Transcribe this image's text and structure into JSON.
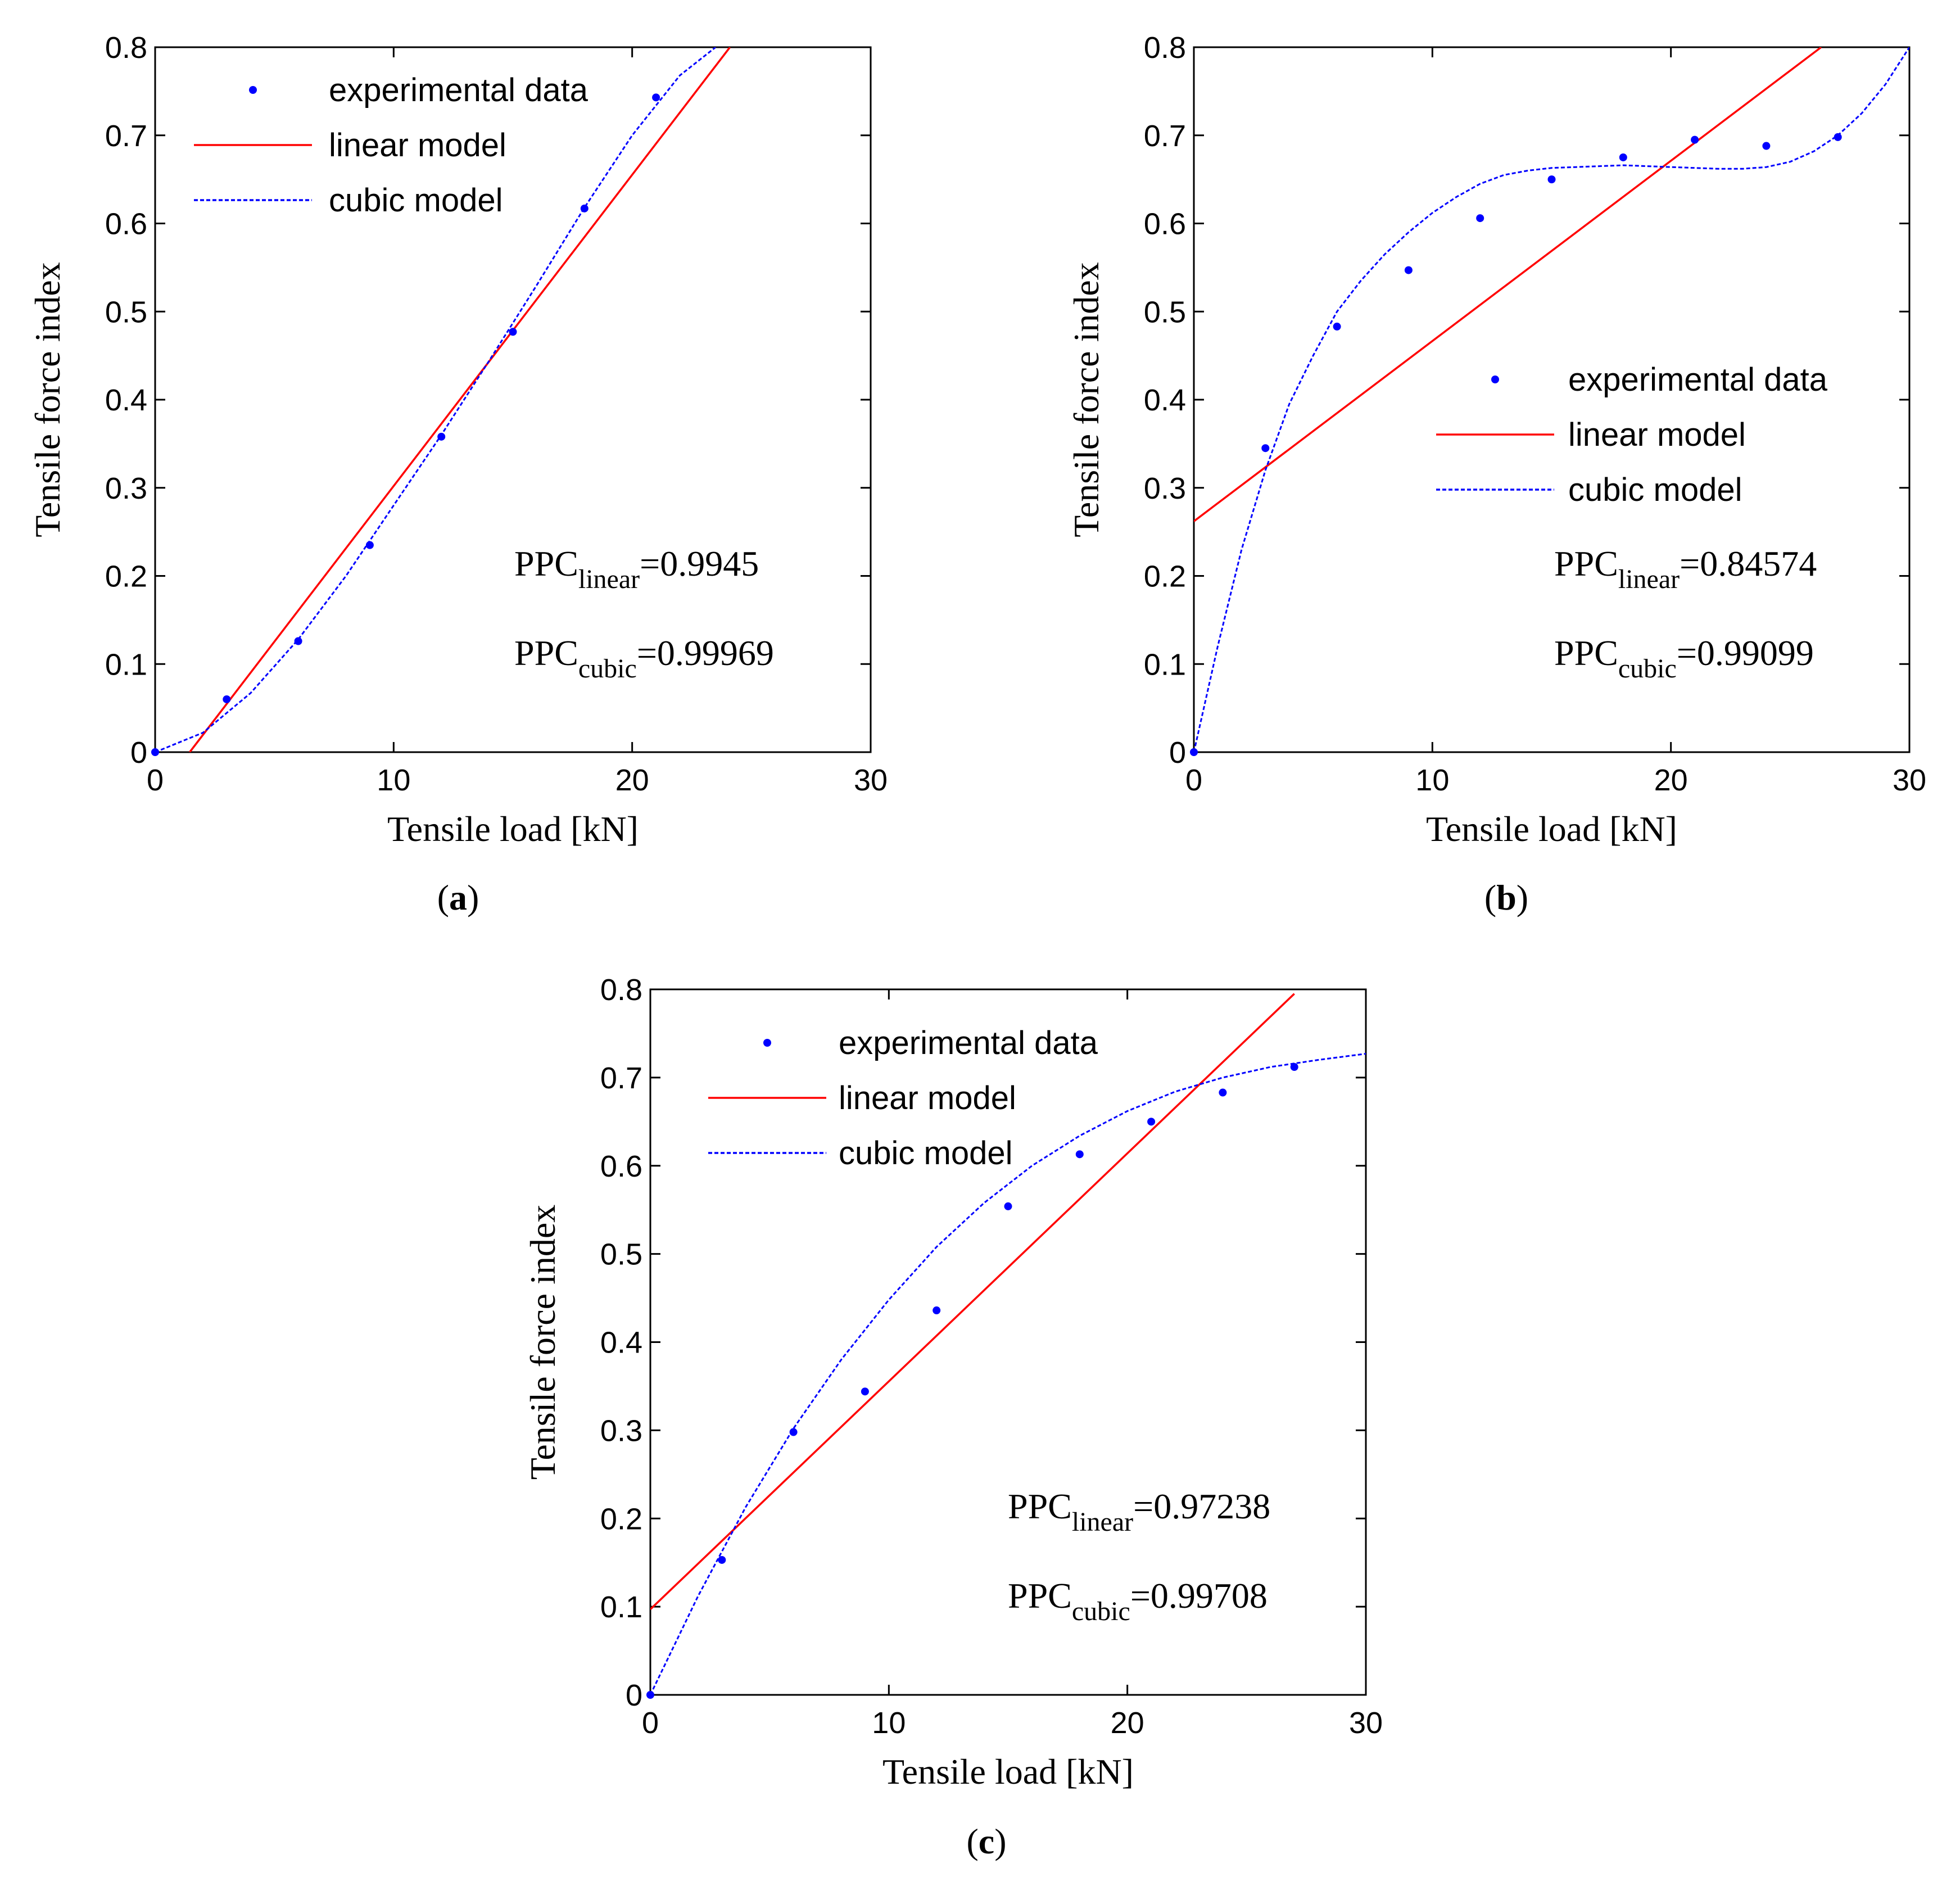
{
  "chart_data": [
    {
      "id": "a",
      "type": "scatter",
      "panel_label": "a",
      "xlabel": "Tensile load [kN]",
      "ylabel": "Tensile force index",
      "xlim": [
        0,
        30
      ],
      "ylim": [
        0,
        0.8
      ],
      "xticks": [
        "0",
        "10",
        "20",
        "30"
      ],
      "yticks": [
        "0",
        "0.1",
        "0.2",
        "0.3",
        "0.4",
        "0.5",
        "0.6",
        "0.7",
        "0.8"
      ],
      "legend": {
        "placement": "top-left",
        "entries": [
          "experimental data",
          "linear model",
          "cubic model"
        ]
      },
      "series": [
        {
          "name": "experimental data",
          "kind": "points",
          "color": "#0000ff",
          "x": [
            0,
            3,
            6,
            9,
            12,
            15,
            18,
            21
          ],
          "y": [
            0.0,
            0.06,
            0.126,
            0.235,
            0.358,
            0.477,
            0.617,
            0.743
          ]
        },
        {
          "name": "linear model",
          "kind": "line",
          "color": "#ff0000",
          "x": [
            1.45,
            24.1
          ],
          "y": [
            0.0,
            0.8
          ]
        },
        {
          "name": "cubic model",
          "kind": "line",
          "dashed": true,
          "color": "#0000ff",
          "x": [
            0,
            2,
            4,
            6,
            8,
            10,
            12,
            14,
            16,
            18,
            20,
            22,
            23.5
          ],
          "y": [
            0.0,
            0.022,
            0.067,
            0.128,
            0.2,
            0.28,
            0.36,
            0.444,
            0.53,
            0.618,
            0.7,
            0.768,
            0.8
          ]
        }
      ],
      "annotations": [
        {
          "base": "PPC",
          "sub": "linear",
          "value": "=0.9945"
        },
        {
          "base": "PPC",
          "sub": "cubic",
          "value": "=0.99969"
        }
      ]
    },
    {
      "id": "b",
      "type": "scatter",
      "panel_label": "b",
      "xlabel": "Tensile load [kN]",
      "ylabel": "Tensile force index",
      "xlim": [
        0,
        30
      ],
      "ylim": [
        0,
        0.8
      ],
      "xticks": [
        "0",
        "10",
        "20",
        "30"
      ],
      "yticks": [
        "0",
        "0.1",
        "0.2",
        "0.3",
        "0.4",
        "0.5",
        "0.6",
        "0.7",
        "0.8"
      ],
      "legend": {
        "placement": "middle-right",
        "entries": [
          "experimental data",
          "linear model",
          "cubic model"
        ]
      },
      "series": [
        {
          "name": "experimental data",
          "kind": "points",
          "color": "#0000ff",
          "x": [
            0,
            3,
            6,
            9,
            12,
            15,
            18,
            21,
            24,
            27
          ],
          "y": [
            0.0,
            0.345,
            0.483,
            0.547,
            0.606,
            0.65,
            0.675,
            0.695,
            0.688,
            0.698
          ]
        },
        {
          "name": "linear model",
          "kind": "line",
          "color": "#ff0000",
          "x": [
            0,
            26.3
          ],
          "y": [
            0.262,
            0.8
          ]
        },
        {
          "name": "cubic model",
          "kind": "line",
          "dashed": true,
          "color": "#0000ff",
          "x": [
            0,
            1,
            2,
            3,
            4,
            5,
            6,
            7,
            8,
            9,
            10,
            11,
            12,
            13,
            14,
            15,
            16,
            17,
            18,
            19,
            20,
            21,
            22,
            23,
            24,
            25,
            26,
            27,
            28,
            29,
            30
          ],
          "y": [
            0.0,
            0.12,
            0.23,
            0.32,
            0.395,
            0.45,
            0.5,
            0.535,
            0.565,
            0.59,
            0.612,
            0.63,
            0.645,
            0.655,
            0.66,
            0.663,
            0.664,
            0.665,
            0.666,
            0.665,
            0.664,
            0.663,
            0.662,
            0.662,
            0.664,
            0.67,
            0.682,
            0.7,
            0.725,
            0.758,
            0.8
          ]
        }
      ],
      "annotations": [
        {
          "base": "PPC",
          "sub": "linear",
          "value": "=0.84574"
        },
        {
          "base": "PPC",
          "sub": "cubic",
          "value": "=0.99099"
        }
      ]
    },
    {
      "id": "c",
      "type": "scatter",
      "panel_label": "c",
      "xlabel": "Tensile load [kN]",
      "ylabel": "Tensile force index",
      "xlim": [
        0,
        30
      ],
      "ylim": [
        0,
        0.8
      ],
      "xticks": [
        "0",
        "10",
        "20",
        "30"
      ],
      "yticks": [
        "0",
        "0.1",
        "0.2",
        "0.3",
        "0.4",
        "0.5",
        "0.6",
        "0.7",
        "0.8"
      ],
      "legend": {
        "placement": "top-left",
        "entries": [
          "experimental data",
          "linear model",
          "cubic model"
        ]
      },
      "series": [
        {
          "name": "experimental data",
          "kind": "points",
          "color": "#0000ff",
          "x": [
            0,
            3,
            6,
            9,
            12,
            15,
            18,
            21,
            24,
            27
          ],
          "y": [
            0.0,
            0.153,
            0.298,
            0.344,
            0.436,
            0.554,
            0.613,
            0.65,
            0.683,
            0.712
          ]
        },
        {
          "name": "linear model",
          "kind": "line",
          "color": "#ff0000",
          "x": [
            0,
            27
          ],
          "y": [
            0.097,
            0.795
          ]
        },
        {
          "name": "cubic model",
          "kind": "line",
          "dashed": true,
          "color": "#0000ff",
          "x": [
            0,
            2,
            4,
            6,
            8,
            10,
            12,
            14,
            16,
            18,
            20,
            22,
            24,
            26,
            28,
            30
          ],
          "y": [
            0.0,
            0.112,
            0.213,
            0.302,
            0.38,
            0.448,
            0.508,
            0.558,
            0.6,
            0.634,
            0.662,
            0.684,
            0.7,
            0.712,
            0.72,
            0.727
          ]
        }
      ],
      "annotations": [
        {
          "base": "PPC",
          "sub": "linear",
          "value": "=0.97238"
        },
        {
          "base": "PPC",
          "sub": "cubic",
          "value": "=0.99708"
        }
      ]
    }
  ]
}
